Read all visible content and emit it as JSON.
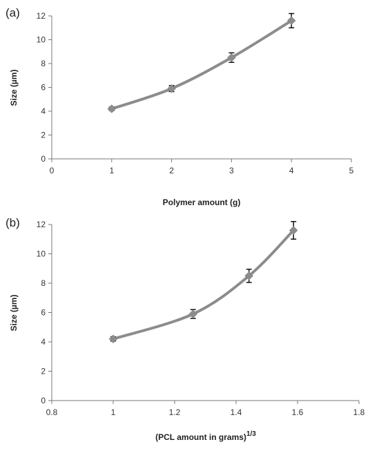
{
  "chart_data": [
    {
      "type": "line",
      "panel_label": "(a)",
      "xlabel": "Polymer amount (g)",
      "ylabel": "Size (µm)",
      "xlim": [
        0,
        5
      ],
      "ylim": [
        0,
        12
      ],
      "xticks": [
        0,
        1,
        2,
        3,
        4,
        5
      ],
      "xtick_labels": [
        "0",
        "1",
        "2",
        "3",
        "4",
        "5"
      ],
      "yticks": [
        0,
        2,
        4,
        6,
        8,
        10,
        12
      ],
      "ytick_labels": [
        "0",
        "2",
        "4",
        "6",
        "8",
        "10",
        "12"
      ],
      "grid": false,
      "series": [
        {
          "x": [
            1,
            2,
            3,
            4
          ],
          "y": [
            4.2,
            5.9,
            8.5,
            11.6
          ],
          "error": [
            0.15,
            0.25,
            0.4,
            0.6
          ],
          "marker": "diamond",
          "color": "#8c8c8c"
        }
      ]
    },
    {
      "type": "line",
      "panel_label": "(b)",
      "xlabel": "(PCL amount in grams)",
      "xlabel_superscript": "1/3",
      "ylabel": "Size (µm)",
      "xlim": [
        0.8,
        1.8
      ],
      "ylim": [
        0,
        12
      ],
      "xticks": [
        0.8,
        1,
        1.2,
        1.4,
        1.6,
        1.8
      ],
      "xtick_labels": [
        "0.8",
        "1",
        "1.2",
        "1.4",
        "1.6",
        "1.8"
      ],
      "yticks": [
        0,
        2,
        4,
        6,
        8,
        10,
        12
      ],
      "ytick_labels": [
        "0",
        "2",
        "4",
        "6",
        "8",
        "10",
        "12"
      ],
      "grid": false,
      "series": [
        {
          "x": [
            1.0,
            1.26,
            1.442,
            1.587
          ],
          "y": [
            4.2,
            5.9,
            8.5,
            11.6
          ],
          "error": [
            0.15,
            0.3,
            0.45,
            0.6
          ],
          "marker": "diamond",
          "color": "#8c8c8c"
        }
      ]
    }
  ]
}
